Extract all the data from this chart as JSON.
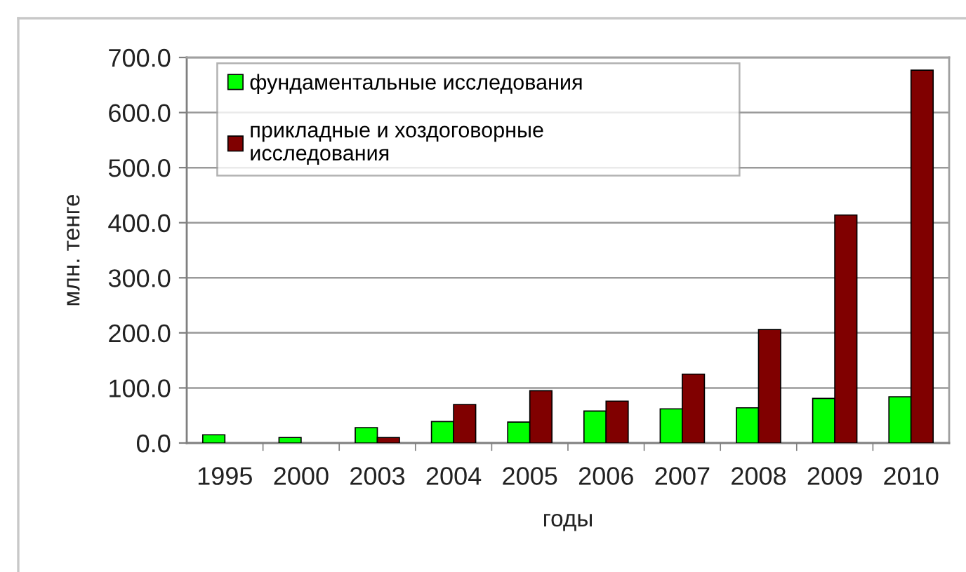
{
  "chart_data": {
    "type": "bar",
    "xlabel": "годы",
    "ylabel": "млн. тенге",
    "categories": [
      "1995",
      "2000",
      "2003",
      "2004",
      "2005",
      "2006",
      "2007",
      "2008",
      "2009",
      "2010"
    ],
    "series": [
      {
        "name": "фундаментальные исследования",
        "color": "#00ff00",
        "values": [
          15,
          10,
          28,
          39,
          38,
          58,
          62,
          64,
          81,
          84
        ]
      },
      {
        "name": "прикладные и хоздоговорные\nисследования",
        "color": "#800000",
        "values": [
          null,
          null,
          10,
          70,
          95,
          76,
          125,
          206,
          414,
          677
        ]
      }
    ],
    "ylim": [
      0,
      700
    ],
    "yticks": [
      {
        "value": 0,
        "label": "0.0"
      },
      {
        "value": 100,
        "label": "100.0"
      },
      {
        "value": 200,
        "label": "200.0"
      },
      {
        "value": 300,
        "label": "300.0"
      },
      {
        "value": 400,
        "label": "400.0"
      },
      {
        "value": 500,
        "label": "500.0"
      },
      {
        "value": 600,
        "label": "600.0"
      },
      {
        "value": 700,
        "label": "700.0"
      }
    ],
    "grid": "y",
    "legend": "top left"
  }
}
